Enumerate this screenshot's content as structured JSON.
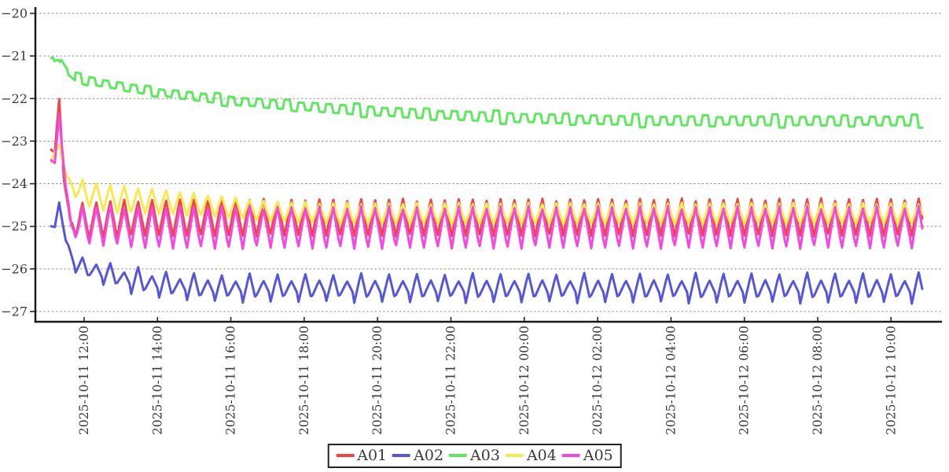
{
  "chart_data": {
    "type": "line",
    "title": "",
    "xlabel": "",
    "ylabel": "",
    "grid": "horizontal-dashed",
    "legend_position": "bottom-center",
    "style": {
      "background": "#ffffff",
      "axis_color": "#1a1a1a",
      "grid_color": "#8f8f8f",
      "tick_label_color": "#3a3a3a",
      "line_width": 3
    },
    "ylim": [
      -27.25,
      -19.85
    ],
    "y_tick_values": [
      -20,
      -21,
      -22,
      -23,
      -24,
      -25,
      -26,
      -27
    ],
    "y_tick_labels": [
      "−20",
      "−21",
      "−22",
      "−23",
      "−24",
      "−25",
      "−26",
      "−27"
    ],
    "x_range_hours": [
      -0.33,
      24.39
    ],
    "x_start_label": "2025-10-11 ~11:05",
    "x_end_label": "2025-10-12 ~10:55",
    "x_ticks": [
      {
        "t": 1,
        "label": "2025-10-11 12:00"
      },
      {
        "t": 3,
        "label": "2025-10-11 14:00"
      },
      {
        "t": 5,
        "label": "2025-10-11 16:00"
      },
      {
        "t": 7,
        "label": "2025-10-11 18:00"
      },
      {
        "t": 9,
        "label": "2025-10-11 20:00"
      },
      {
        "t": 11,
        "label": "2025-10-11 22:00"
      },
      {
        "t": 13,
        "label": "2025-10-12 00:00"
      },
      {
        "t": 15,
        "label": "2025-10-12 02:00"
      },
      {
        "t": 17,
        "label": "2025-10-12 04:00"
      },
      {
        "t": 19,
        "label": "2025-10-12 06:00"
      },
      {
        "t": 21,
        "label": "2025-10-12 08:00"
      },
      {
        "t": 23,
        "label": "2025-10-12 10:00"
      }
    ],
    "oscillation_period_hours": 0.38,
    "series": [
      {
        "name": "A01",
        "color": "#ee4545",
        "waveform": "triangle",
        "period_h": 0.38,
        "trend": [
          [
            0.1,
            -23.2
          ],
          [
            0.2,
            -23.3
          ],
          [
            0.32,
            -22.0
          ],
          [
            0.45,
            -23.9
          ],
          [
            0.62,
            -24.92
          ],
          [
            1.2,
            -24.85
          ],
          [
            2.5,
            -24.8
          ],
          [
            23.85,
            -24.79
          ]
        ],
        "amplitude": [
          [
            0.1,
            0.02
          ],
          [
            0.55,
            0.06
          ],
          [
            0.85,
            0.44
          ],
          [
            23.85,
            0.45
          ]
        ],
        "amp_pattern": [
          1,
          0.93,
          1.03,
          0.97,
          1,
          1.05,
          0.9,
          1,
          0.96,
          1.02
        ],
        "steady_peak": -24.35,
        "steady_trough": -25.25
      },
      {
        "name": "A02",
        "color": "#5657d8",
        "waveform": "triangle",
        "period_h": 0.38,
        "trend": [
          [
            0.1,
            -25.0
          ],
          [
            0.2,
            -25.05
          ],
          [
            0.32,
            -24.42
          ],
          [
            0.5,
            -25.35
          ],
          [
            0.75,
            -25.9
          ],
          [
            1.3,
            -26.05
          ],
          [
            2.2,
            -26.25
          ],
          [
            3.2,
            -26.38
          ],
          [
            4.5,
            -26.45
          ],
          [
            23.85,
            -26.45
          ]
        ],
        "amplitude": [
          [
            0.1,
            0.02
          ],
          [
            0.45,
            0.08
          ],
          [
            0.8,
            0.2
          ],
          [
            1.3,
            0.3
          ],
          [
            3,
            0.33
          ],
          [
            23.85,
            0.36
          ]
        ],
        "amp_pattern": [
          1,
          0.5,
          1.02,
          0.55,
          0.95,
          0.48,
          1.08,
          0.52
        ],
        "steady_peak": -26.1,
        "steady_trough": -26.82
      },
      {
        "name": "A03",
        "color": "#5fe75f",
        "waveform": "square",
        "period_h": 0.38,
        "trend": [
          [
            0.1,
            -21.1
          ],
          [
            0.3,
            -21.03
          ],
          [
            0.5,
            -21.33
          ],
          [
            0.75,
            -21.5
          ],
          [
            1.4,
            -21.62
          ],
          [
            2.1,
            -21.73
          ],
          [
            3,
            -21.85
          ],
          [
            4,
            -21.95
          ],
          [
            5,
            -22.05
          ],
          [
            6,
            -22.12
          ],
          [
            8,
            -22.25
          ],
          [
            10,
            -22.35
          ],
          [
            12,
            -22.43
          ],
          [
            14,
            -22.48
          ],
          [
            16,
            -22.52
          ],
          [
            23.85,
            -22.53
          ]
        ],
        "amplitude": [
          [
            0.1,
            0.05
          ],
          [
            1,
            0.08
          ],
          [
            8,
            0.1
          ],
          [
            23.85,
            0.1
          ]
        ],
        "amp_pattern": [
          1,
          1,
          1.55,
          1,
          0.9,
          1.05,
          1,
          1.3,
          0.85,
          1
        ],
        "steady_peak": -22.43,
        "steady_trough": -22.63
      },
      {
        "name": "A04",
        "color": "#f7e94f",
        "waveform": "triangle",
        "period_h": 0.38,
        "trend": [
          [
            0.1,
            -23.5
          ],
          [
            0.32,
            -23.05
          ],
          [
            0.55,
            -23.95
          ],
          [
            0.9,
            -24.2
          ],
          [
            1.7,
            -24.35
          ],
          [
            3,
            -24.42
          ],
          [
            4.5,
            -24.52
          ],
          [
            6,
            -24.65
          ],
          [
            8,
            -24.7
          ],
          [
            23.85,
            -24.7
          ]
        ],
        "amplitude": [
          [
            0.1,
            0.04
          ],
          [
            0.6,
            0.12
          ],
          [
            1,
            0.34
          ],
          [
            2.5,
            0.32
          ],
          [
            5,
            0.25
          ],
          [
            23.85,
            0.25
          ]
        ],
        "amp_pattern": [
          1,
          0.94,
          1.04,
          0.9,
          1,
          1.06,
          0.92,
          1
        ],
        "steady_peak": -24.45,
        "steady_trough": -24.95
      },
      {
        "name": "A05",
        "color": "#f24ae1",
        "waveform": "triangle",
        "period_h": 0.38,
        "trend": [
          [
            0.1,
            -23.45
          ],
          [
            0.2,
            -23.55
          ],
          [
            0.32,
            -22.35
          ],
          [
            0.5,
            -24.1
          ],
          [
            0.65,
            -25.0
          ],
          [
            1.5,
            -24.98
          ],
          [
            2.5,
            -25.03
          ],
          [
            23.85,
            -25.02
          ]
        ],
        "amplitude": [
          [
            0.1,
            0.03
          ],
          [
            0.6,
            0.08
          ],
          [
            0.95,
            0.45
          ],
          [
            2.5,
            0.5
          ],
          [
            23.85,
            0.5
          ]
        ],
        "amp_pattern": [
          1,
          0.92,
          1.05,
          0.95,
          1.06,
          0.88,
          1,
          1,
          0.93,
          1.04
        ],
        "steady_peak": -24.55,
        "steady_trough": -25.53
      }
    ],
    "legend": [
      {
        "label": "A01",
        "color": "#ee4545"
      },
      {
        "label": "A02",
        "color": "#5657d8"
      },
      {
        "label": "A03",
        "color": "#5fe75f"
      },
      {
        "label": "A04",
        "color": "#f7e94f"
      },
      {
        "label": "A05",
        "color": "#f24ae1"
      }
    ]
  }
}
